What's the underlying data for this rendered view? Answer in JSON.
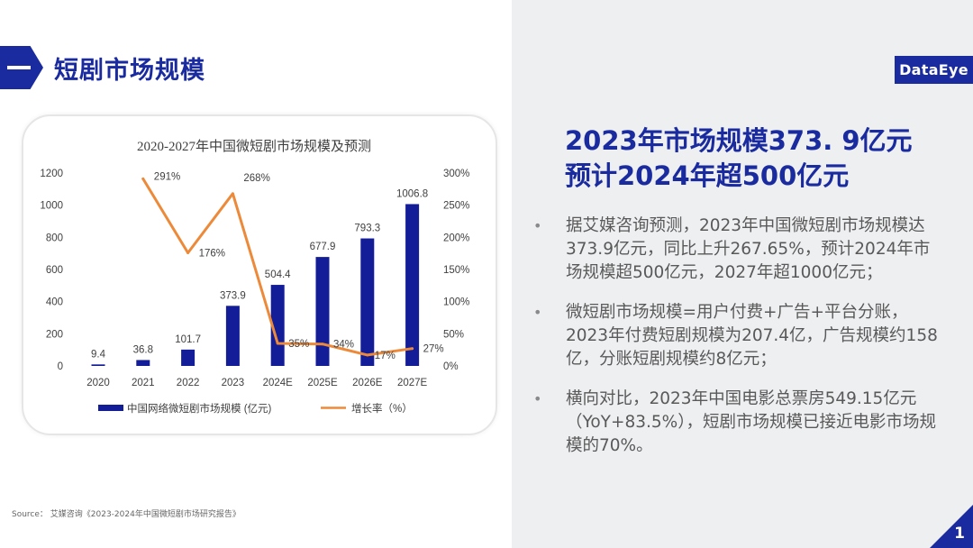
{
  "header": {
    "title": "短剧市场规模"
  },
  "logo": {
    "text": "DataEye"
  },
  "chart_data": {
    "type": "bar",
    "title": "2020-2027年中国微短剧市场规模及预测",
    "categories": [
      "2020",
      "2021",
      "2022",
      "2023",
      "2024E",
      "2025E",
      "2026E",
      "2027E"
    ],
    "series": [
      {
        "name": "中国网络微短剧市场规模 (亿元)",
        "type": "bar",
        "axis": "left",
        "color": "#131d98",
        "values": [
          9.4,
          36.8,
          101.7,
          373.9,
          504.4,
          677.9,
          793.3,
          1006.8
        ],
        "labels": [
          "9.4",
          "36.8",
          "101.7",
          "373.9",
          "504.4",
          "677.9",
          "793.3",
          "1006.8"
        ]
      },
      {
        "name": "增长率（%）",
        "type": "line",
        "axis": "right",
        "color": "#ed8a3a",
        "values": [
          null,
          291,
          176,
          268,
          35,
          34,
          17,
          27
        ],
        "labels": [
          "",
          "291%",
          "176%",
          "268%",
          "35%",
          "34%",
          "17%",
          "27%"
        ]
      }
    ],
    "ylim_left": [
      0,
      1200
    ],
    "yticks_left": [
      "0",
      "200",
      "400",
      "600",
      "800",
      "1000",
      "1200"
    ],
    "ylim_right": [
      0,
      300
    ],
    "yticks_right": [
      "0%",
      "50%",
      "100%",
      "150%",
      "200%",
      "250%",
      "300%"
    ],
    "grid": false,
    "legend_position": "bottom"
  },
  "source": {
    "text": "Source： 艾媒咨询《2023-2024年中国微短剧市场研究报告》"
  },
  "headline": {
    "line1": "2023年市场规模373. 9亿元",
    "line2": "预计2024年超500亿元"
  },
  "bullets": [
    {
      "bullet": "•",
      "text": "据艾媒咨询预测，2023年中国微短剧市场规模达373.9亿元，同比上升267.65%，预计2024年市场规模超500亿元，2027年超1000亿元；"
    },
    {
      "bullet": "•",
      "text": "微短剧市场规模=用户付费+广告+平台分账，2023年付费短剧规模为207.4亿，广告规模约158亿，分账短剧规模约8亿元；"
    },
    {
      "bullet": "•",
      "text": "横向对比，2023年中国电影总票房549.15亿元（YoY+83.5%），短剧市场规模已接近电影市场规模的70%。"
    }
  ],
  "page": {
    "number": "1"
  }
}
